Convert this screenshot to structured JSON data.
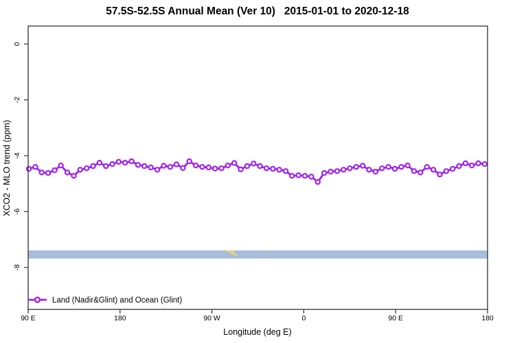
{
  "header": {
    "title": "57.5S-52.5S Annual Mean (Ver 10)   2015-01-01 to 2020-12-18"
  },
  "axes": {
    "xlabel": "Longitude (deg E)",
    "ylabel": "XCO2 - MLO trend (ppm)"
  },
  "legend": {
    "label": "Land (Nadir&Glint) and Ocean (Glint)",
    "color": "#A020F0"
  },
  "colors": {
    "series": "#A020F0",
    "ocean_band": "#A8BDDB",
    "land_marks": "#F3D06E",
    "frame": "#2f2f2f"
  },
  "chart_data": {
    "type": "line",
    "title": "57.5S-52.5S Annual Mean (Ver 10)   2015-01-01 to 2020-12-18",
    "xlabel": "Longitude (deg E)",
    "ylabel": "XCO2 - MLO trend (ppm)",
    "xlim": [
      90,
      540
    ],
    "ylim": [
      -9.5,
      0.64
    ],
    "grid": false,
    "legend_position": "bottom-left",
    "x_ticks": [
      {
        "value": 90,
        "label": "90 E"
      },
      {
        "value": 180,
        "label": "180"
      },
      {
        "value": 270,
        "label": "90 W"
      },
      {
        "value": 360,
        "label": "0"
      },
      {
        "value": 450,
        "label": "90 E"
      },
      {
        "value": 540,
        "label": "180"
      }
    ],
    "y_ticks": [
      {
        "value": 0,
        "label": "0"
      },
      {
        "value": -2,
        "label": "-2"
      },
      {
        "value": -4,
        "label": "-4"
      },
      {
        "value": -6,
        "label": "-6"
      },
      {
        "value": -8,
        "label": "-8"
      }
    ],
    "series": [
      {
        "name": "Land (Nadir&Glint) and Ocean (Glint)",
        "color": "#A020F0",
        "marker": "open-circle",
        "x": [
          90.7,
          97.0,
          103.3,
          109.6,
          115.9,
          122.1,
          128.4,
          134.7,
          141.0,
          147.3,
          153.6,
          159.9,
          166.2,
          172.5,
          178.7,
          185.0,
          191.3,
          197.6,
          203.9,
          210.2,
          216.5,
          222.8,
          229.1,
          235.3,
          241.6,
          247.9,
          254.2,
          260.5,
          266.8,
          273.1,
          279.4,
          285.7,
          291.9,
          298.2,
          304.5,
          310.8,
          317.1,
          323.4,
          329.7,
          336.0,
          342.3,
          348.5,
          354.8,
          361.1,
          367.4,
          373.7,
          380.0,
          386.3,
          392.6,
          398.9,
          405.1,
          411.4,
          417.7,
          424.0,
          430.3,
          436.6,
          442.9,
          449.2,
          455.5,
          461.7,
          468.0,
          474.3,
          480.6,
          486.9,
          493.2,
          499.5,
          505.8,
          512.1,
          518.4,
          524.6,
          530.9,
          537.2
        ],
        "values": [
          -4.47,
          -4.4,
          -4.6,
          -4.62,
          -4.52,
          -4.35,
          -4.6,
          -4.72,
          -4.5,
          -4.45,
          -4.37,
          -4.25,
          -4.37,
          -4.3,
          -4.22,
          -4.25,
          -4.2,
          -4.33,
          -4.37,
          -4.42,
          -4.5,
          -4.36,
          -4.4,
          -4.31,
          -4.44,
          -4.2,
          -4.35,
          -4.4,
          -4.42,
          -4.46,
          -4.45,
          -4.35,
          -4.26,
          -4.49,
          -4.37,
          -4.28,
          -4.37,
          -4.45,
          -4.47,
          -4.5,
          -4.55,
          -4.72,
          -4.7,
          -4.72,
          -4.75,
          -4.94,
          -4.62,
          -4.57,
          -4.55,
          -4.5,
          -4.45,
          -4.4,
          -4.36,
          -4.5,
          -4.57,
          -4.45,
          -4.4,
          -4.47,
          -4.4,
          -4.35,
          -4.55,
          -4.6,
          -4.4,
          -4.5,
          -4.67,
          -4.55,
          -4.47,
          -4.37,
          -4.27,
          -4.35,
          -4.27,
          -4.3
        ]
      }
    ],
    "ocean_band": {
      "color": "#A8BDDB",
      "from": -7.39,
      "to": -7.68
    },
    "land_marks": {
      "color": "#F3D06E",
      "rects": [
        [
          282.4,
          -7.36,
          2.0,
          0.05
        ],
        [
          285.0,
          -7.39,
          2.7,
          0.05
        ],
        [
          287.1,
          -7.41,
          4.7,
          0.07
        ],
        [
          289.1,
          -7.48,
          4.0,
          0.05
        ],
        [
          291.8,
          -7.53,
          2.7,
          0.05
        ],
        [
          322.0,
          -7.51,
          1.3,
          0.05
        ]
      ]
    }
  }
}
